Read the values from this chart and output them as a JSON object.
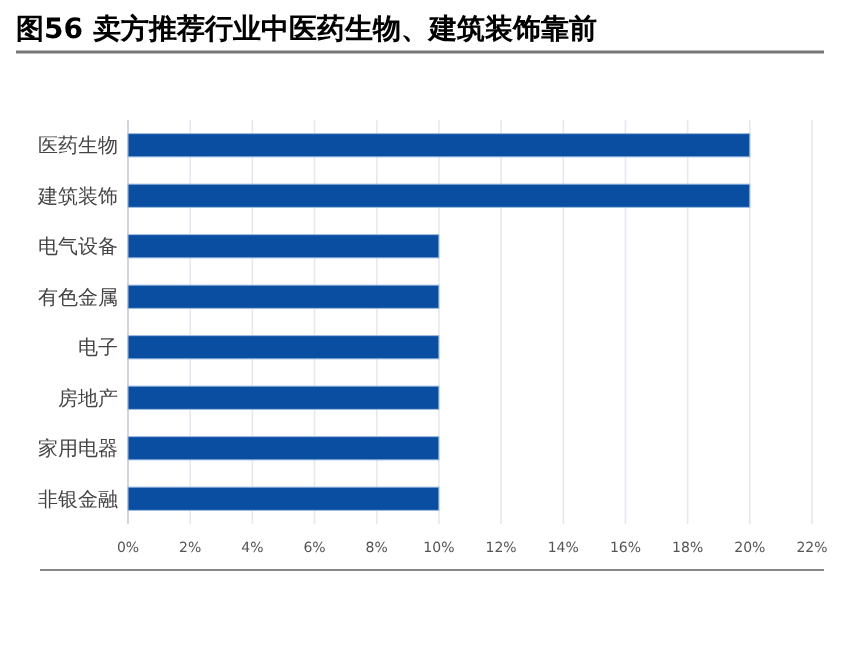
{
  "chart_data": {
    "type": "bar",
    "orientation": "horizontal",
    "title": "图56 卖方推荐行业中医药生物、建筑装饰靠前",
    "categories": [
      "医药生物",
      "建筑装饰",
      "电气设备",
      "有色金属",
      "电子",
      "房地产",
      "家用电器",
      "非银金融"
    ],
    "values": [
      20,
      20,
      10,
      10,
      10,
      10,
      10,
      10
    ],
    "color": "#0a4ea2",
    "xlim": [
      0,
      22
    ],
    "xticks": [
      {
        "value": 0,
        "label": "0%"
      },
      {
        "value": 2,
        "label": "2%"
      },
      {
        "value": 4,
        "label": "4%"
      },
      {
        "value": 6,
        "label": "6%"
      },
      {
        "value": 8,
        "label": "8%"
      },
      {
        "value": 10,
        "label": "10%"
      },
      {
        "value": 12,
        "label": "12%"
      },
      {
        "value": 14,
        "label": "14%"
      },
      {
        "value": 16,
        "label": "16%"
      },
      {
        "value": 18,
        "label": "18%"
      },
      {
        "value": 20,
        "label": "20%"
      },
      {
        "value": 22,
        "label": "22%"
      }
    ],
    "grid": "x"
  }
}
